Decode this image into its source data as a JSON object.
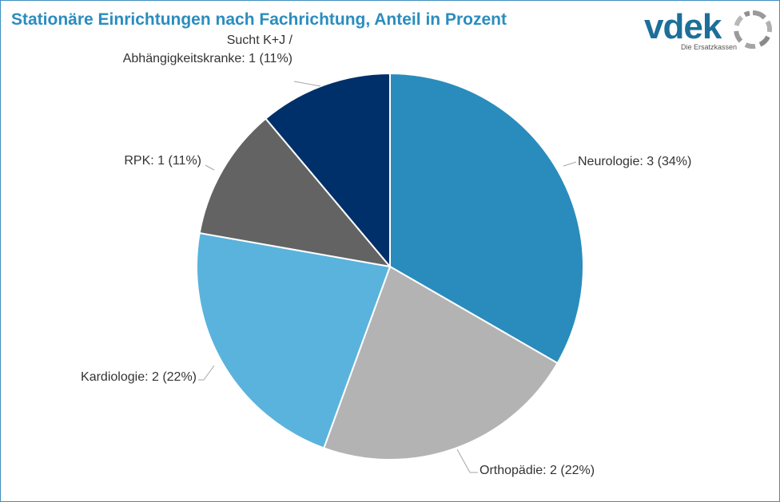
{
  "header": {
    "title": "Stationäre Einrichtungen nach Fachrichtung, Anteil in Prozent"
  },
  "logo": {
    "word": "vdek",
    "tagline": "Die Ersatzkassen"
  },
  "chart_data": {
    "type": "pie",
    "title": "Stationäre Einrichtungen nach Fachrichtung, Anteil in Prozent",
    "start_angle_deg": 0,
    "direction": "clockwise",
    "slices": [
      {
        "name": "Neurologie",
        "value": 3,
        "percent": 34,
        "color": "#2a8cbc",
        "label_lines": [
          "Neurologie: 3 (34%)"
        ]
      },
      {
        "name": "Orthopädie",
        "value": 2,
        "percent": 22,
        "color": "#b3b3b3",
        "label_lines": [
          "Orthopädie: 2 (22%)"
        ]
      },
      {
        "name": "Kardiologie",
        "value": 2,
        "percent": 22,
        "color": "#5ab3dc",
        "label_lines": [
          "Kardiologie: 2 (22%)"
        ]
      },
      {
        "name": "RPK",
        "value": 1,
        "percent": 11,
        "color": "#636363",
        "label_lines": [
          "RPK: 1 (11%)"
        ]
      },
      {
        "name": "Sucht K+J / Abhängigkeitskranke",
        "value": 1,
        "percent": 11,
        "color": "#00306a",
        "label_lines": [
          "Sucht K+J /",
          "Abhängigkeitskranke: 1 (11%)"
        ]
      }
    ]
  }
}
